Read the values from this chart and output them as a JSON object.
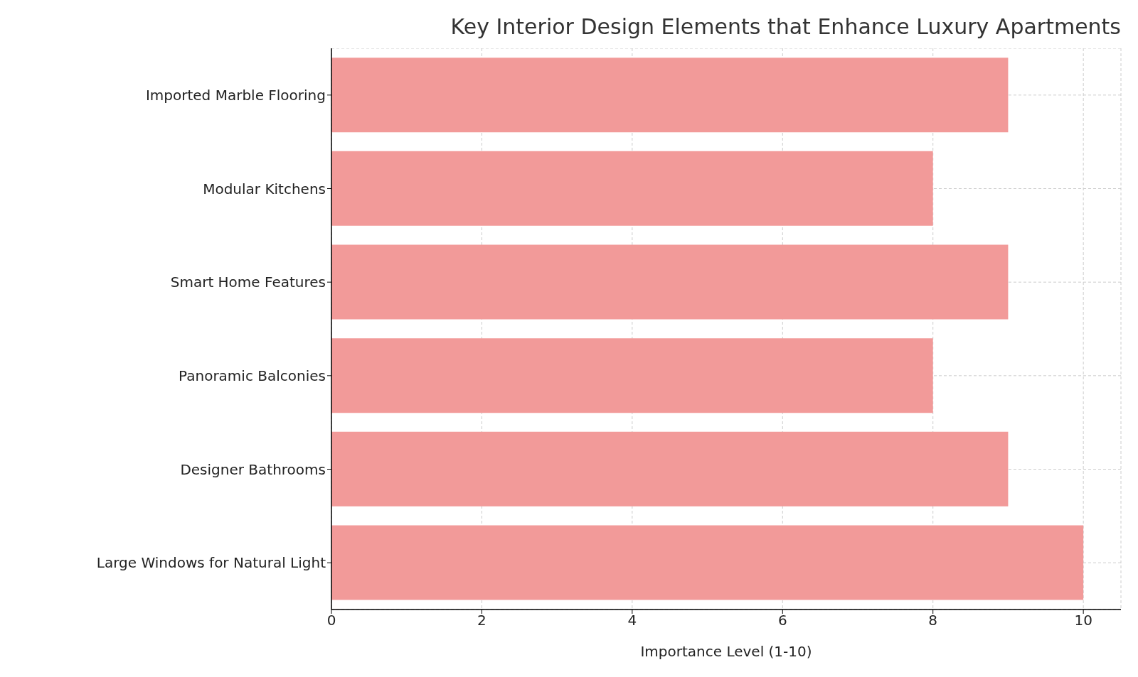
{
  "chart_data": {
    "type": "bar",
    "orientation": "horizontal",
    "title": "Key Interior Design Elements that Enhance Luxury Apartments",
    "xlabel": "Importance Level (1-10)",
    "categories": [
      "Imported Marble Flooring",
      "Modular Kitchens",
      "Smart Home Features",
      "Panoramic Balconies",
      "Designer Bathrooms",
      "Large Windows for Natural Light"
    ],
    "values": [
      9,
      8,
      9,
      8,
      9,
      10
    ],
    "color": "#f29a99",
    "xlim": [
      0,
      10.5
    ],
    "xticks": [
      0,
      2,
      4,
      6,
      8,
      10
    ],
    "grid": true
  }
}
